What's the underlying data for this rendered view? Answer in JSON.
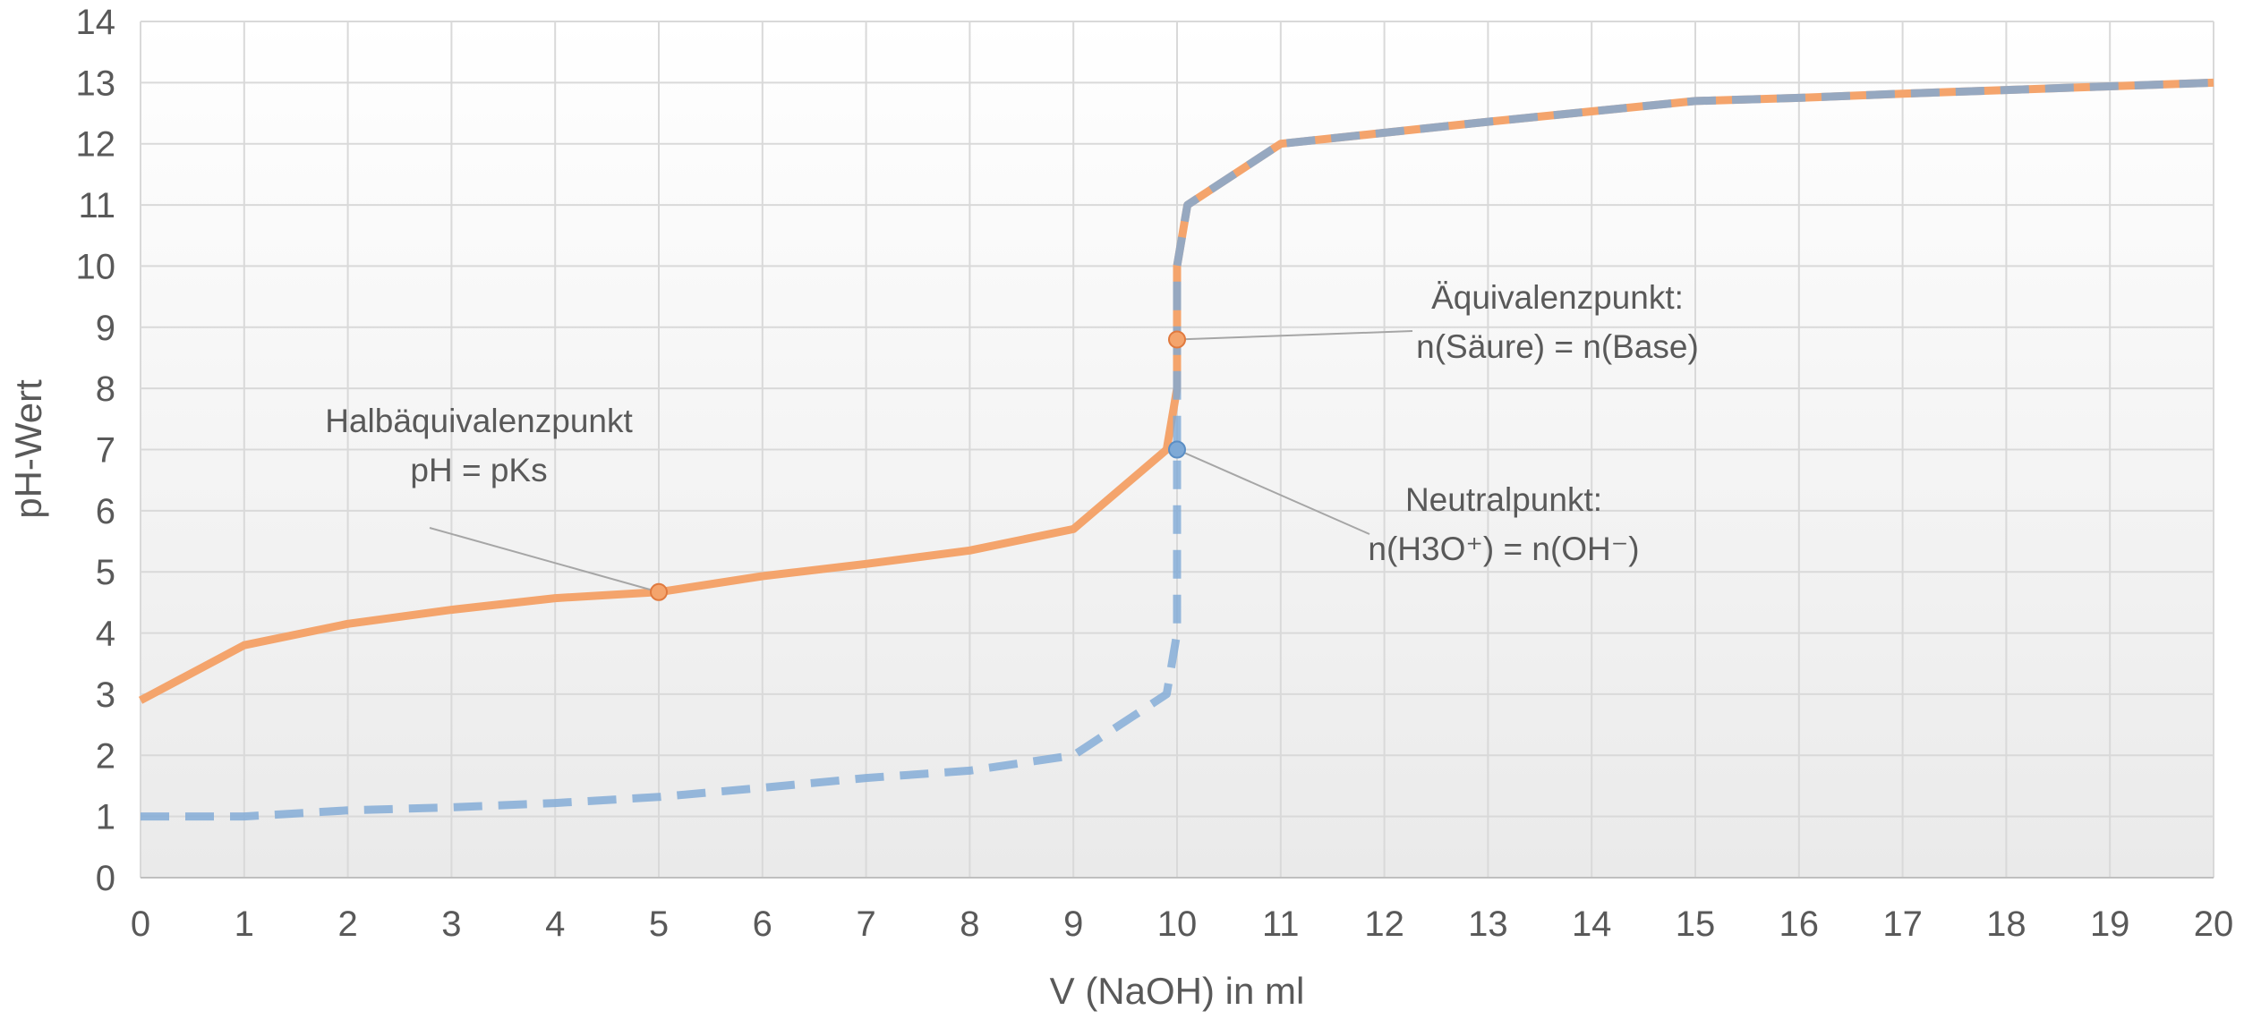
{
  "chart_data": {
    "type": "line",
    "title": "",
    "xlabel": "V (NaOH) in ml",
    "ylabel": "pH-Wert",
    "xlim": [
      0,
      20
    ],
    "ylim": [
      0,
      14
    ],
    "x_ticks": [
      0,
      1,
      2,
      3,
      4,
      5,
      6,
      7,
      8,
      9,
      10,
      11,
      12,
      13,
      14,
      15,
      16,
      17,
      18,
      19,
      20
    ],
    "y_ticks": [
      0,
      1,
      2,
      3,
      4,
      5,
      6,
      7,
      8,
      9,
      10,
      11,
      12,
      13,
      14
    ],
    "grid": true,
    "legend": "none",
    "series": [
      {
        "color": "#f4a46c",
        "line_style": "solid",
        "points": [
          [
            0,
            2.9
          ],
          [
            1,
            3.8
          ],
          [
            2,
            4.15
          ],
          [
            3,
            4.38
          ],
          [
            4,
            4.57
          ],
          [
            5,
            4.67
          ],
          [
            6,
            4.93
          ],
          [
            7,
            5.13
          ],
          [
            8,
            5.35
          ],
          [
            9,
            5.7
          ],
          [
            9.9,
            7.0
          ],
          [
            10,
            8.0
          ],
          [
            10,
            10.0
          ],
          [
            10.1,
            11.0
          ],
          [
            11,
            12.0
          ],
          [
            12,
            12.18
          ],
          [
            13,
            12.36
          ],
          [
            14,
            12.53
          ],
          [
            15,
            12.7
          ],
          [
            16,
            12.75
          ],
          [
            17,
            12.82
          ],
          [
            18,
            12.88
          ],
          [
            19,
            12.94
          ],
          [
            20,
            13.0
          ]
        ]
      },
      {
        "color": "#7ea9d6",
        "line_style": "dashed",
        "points": [
          [
            0,
            1.0
          ],
          [
            1,
            1.0
          ],
          [
            2,
            1.1
          ],
          [
            3,
            1.15
          ],
          [
            4,
            1.22
          ],
          [
            5,
            1.32
          ],
          [
            6,
            1.47
          ],
          [
            7,
            1.63
          ],
          [
            8,
            1.75
          ],
          [
            9,
            2.0
          ],
          [
            9.9,
            3.0
          ],
          [
            10,
            4.0
          ],
          [
            10,
            10.0
          ],
          [
            10.1,
            11.0
          ],
          [
            11,
            12.0
          ],
          [
            12,
            12.18
          ],
          [
            13,
            12.36
          ],
          [
            14,
            12.53
          ],
          [
            15,
            12.7
          ],
          [
            16,
            12.75
          ],
          [
            17,
            12.82
          ],
          [
            18,
            12.88
          ],
          [
            19,
            12.94
          ],
          [
            20,
            13.0
          ]
        ]
      }
    ],
    "markers": [
      {
        "x": 5,
        "y": 4.67,
        "color": "#f4a46c"
      },
      {
        "x": 10,
        "y": 8.8,
        "color": "#f4a46c"
      },
      {
        "x": 10,
        "y": 7.0,
        "color": "#7ea9d6"
      }
    ],
    "annotations": [
      {
        "lines": [
          "Halbäquivalenzpunkt",
          "pH = pKs"
        ],
        "point": [
          5,
          4.67
        ]
      },
      {
        "lines": [
          "Äquivalenzpunkt:",
          "n(Säure) = n(Base)"
        ],
        "point": [
          10,
          8.8
        ]
      },
      {
        "lines": [
          "Neutralpunkt:",
          "n(H3O⁺) = n(OH⁻)"
        ],
        "point": [
          10,
          7.0
        ]
      }
    ]
  }
}
